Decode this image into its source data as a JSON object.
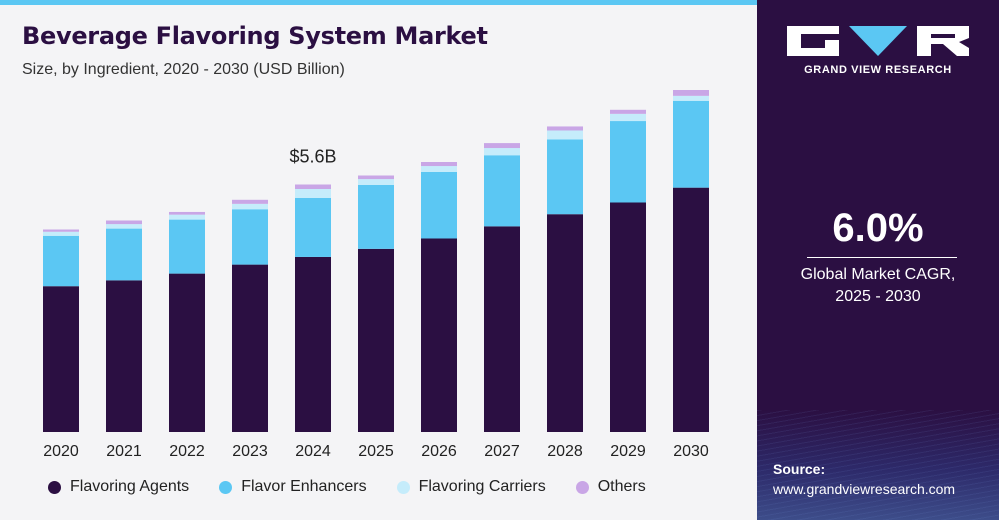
{
  "header": {
    "title": "Beverage Flavoring System Market",
    "subtitle": "Size, by Ingredient, 2020 - 2030 (USD Billion)"
  },
  "brand": {
    "name": "GRAND VIEW RESEARCH",
    "logo_icon": "gvr-logo-icon"
  },
  "cagr": {
    "value": "6.0%",
    "label_line1": "Global Market CAGR,",
    "label_line2": "2025 - 2030"
  },
  "source": {
    "label": "Source:",
    "url": "www.grandviewresearch.com"
  },
  "colors": {
    "flavoring_agents": "#2b0f42",
    "flavor_enhancers": "#5bc7f3",
    "flavoring_carriers": "#c5ecfb",
    "others": "#c9a6e6",
    "sidebar": "#2b0f42"
  },
  "chart_data": {
    "type": "bar",
    "stacked": true,
    "title": "Beverage Flavoring System Market",
    "subtitle": "Size, by Ingredient, 2020 - 2030 (USD Billion)",
    "categories": [
      "2020",
      "2021",
      "2022",
      "2023",
      "2024",
      "2025",
      "2026",
      "2027",
      "2028",
      "2029",
      "2030"
    ],
    "series": [
      {
        "name": "Flavoring Agents",
        "values": [
          3.24,
          3.37,
          3.52,
          3.72,
          3.89,
          4.07,
          4.3,
          4.57,
          4.84,
          5.1,
          5.43
        ]
      },
      {
        "name": "Flavor Enhancers",
        "values": [
          1.12,
          1.15,
          1.2,
          1.23,
          1.31,
          1.42,
          1.48,
          1.58,
          1.66,
          1.81,
          1.93
        ]
      },
      {
        "name": "Flavoring Carriers",
        "values": [
          0.09,
          0.1,
          0.11,
          0.12,
          0.2,
          0.13,
          0.13,
          0.16,
          0.2,
          0.16,
          0.11
        ]
      },
      {
        "name": "Others",
        "values": [
          0.05,
          0.08,
          0.06,
          0.09,
          0.1,
          0.08,
          0.09,
          0.11,
          0.09,
          0.09,
          0.13
        ]
      }
    ],
    "annotations": [
      {
        "category": "2024",
        "text": "$5.6B"
      }
    ],
    "ylim": [
      0,
      7.6
    ],
    "grid": false,
    "legend": "bottom",
    "xlabel": "",
    "ylabel": ""
  }
}
